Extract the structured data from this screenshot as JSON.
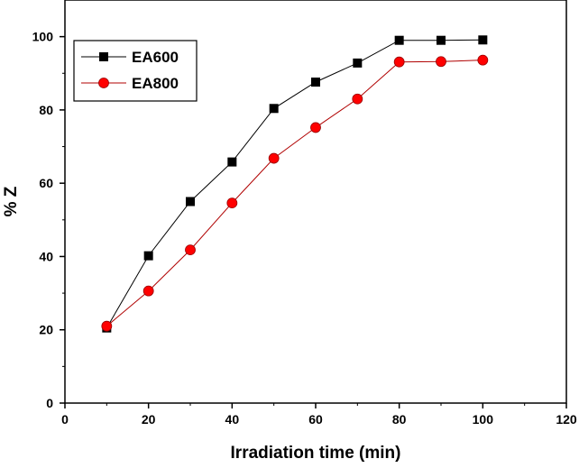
{
  "chart_data": {
    "type": "line",
    "title": "",
    "xlabel": "Irradiation time (min)",
    "ylabel": "% Z",
    "xlim": [
      0,
      120
    ],
    "ylim": [
      0,
      110
    ],
    "xticks": [
      0,
      20,
      40,
      60,
      80,
      100,
      120
    ],
    "yticks": [
      0,
      20,
      40,
      60,
      80,
      100
    ],
    "grid": false,
    "legend_position": "top-left",
    "x": [
      10,
      20,
      30,
      40,
      50,
      60,
      70,
      80,
      90,
      100
    ],
    "series": [
      {
        "name": "EA600",
        "marker": "square",
        "color": "#000000",
        "line_color": "#000000",
        "values": [
          20.5,
          40.2,
          55.0,
          65.8,
          80.4,
          87.6,
          92.8,
          99.0,
          99.0,
          99.1
        ]
      },
      {
        "name": "EA800",
        "marker": "circle",
        "color": "#ff0000",
        "line_color": "#b00000",
        "values": [
          21.0,
          30.6,
          41.8,
          54.6,
          66.8,
          75.2,
          83.0,
          93.1,
          93.2,
          93.6
        ]
      }
    ]
  }
}
